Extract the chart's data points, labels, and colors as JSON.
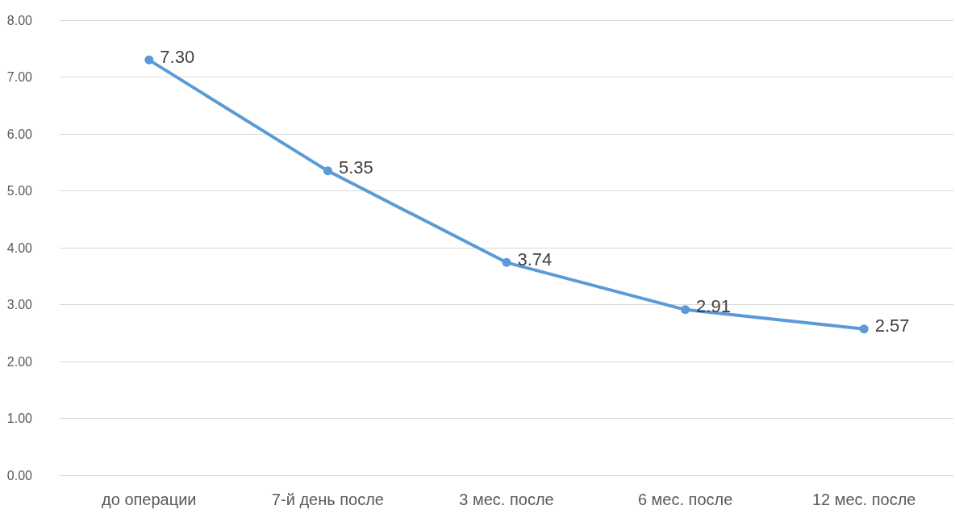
{
  "chart_data": {
    "type": "line",
    "categories": [
      "до операции",
      "7-й день после",
      "3 мес. после",
      "6 мес. после",
      "12 мес. после"
    ],
    "series": [
      {
        "color": "#5b9bd5",
        "values": [
          7.3,
          5.35,
          3.74,
          2.91,
          2.57
        ],
        "value_labels": [
          "7.30",
          "5.35",
          "3.74",
          "2.91",
          "2.57"
        ]
      }
    ],
    "ylim": [
      0,
      8
    ],
    "yticks": [
      {
        "value": 0,
        "label": "0.00"
      },
      {
        "value": 1,
        "label": "1.00"
      },
      {
        "value": 2,
        "label": "2.00"
      },
      {
        "value": 3,
        "label": "3.00"
      },
      {
        "value": 4,
        "label": "4.00"
      },
      {
        "value": 5,
        "label": "5.00"
      },
      {
        "value": 6,
        "label": "6.00"
      },
      {
        "value": 7,
        "label": "7.00"
      },
      {
        "value": 8,
        "label": "8.00"
      }
    ],
    "grid": "y",
    "marker": "circle",
    "line_style": "solid"
  }
}
